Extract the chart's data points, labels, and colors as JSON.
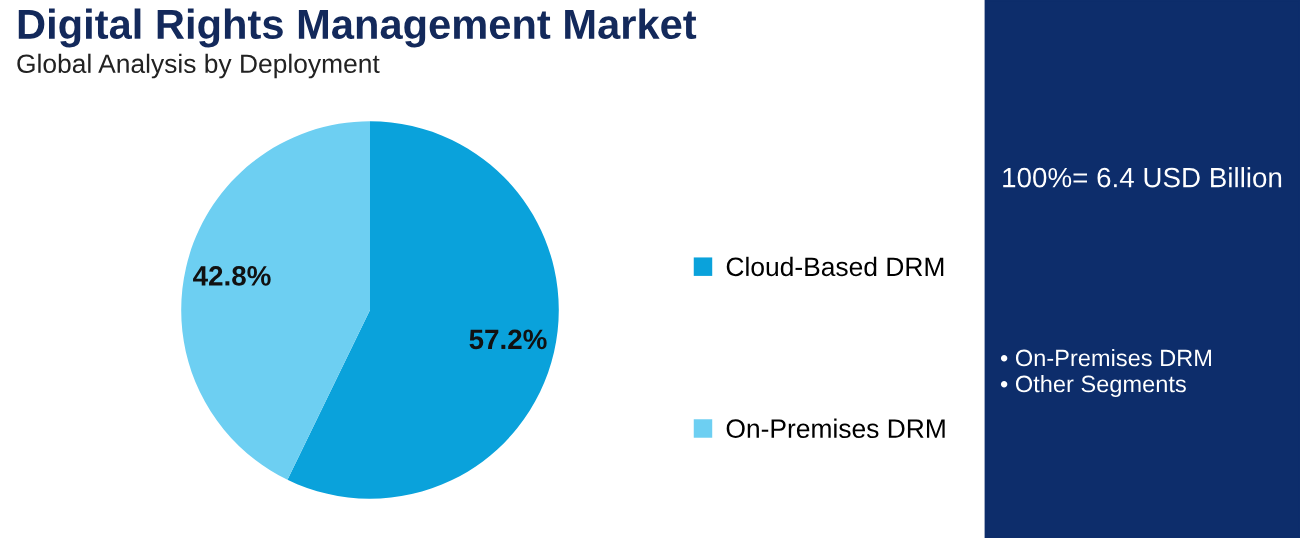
{
  "chart_data": {
    "type": "pie",
    "title": "Digital Rights Management Market",
    "subtitle": "Global Analysis by Deployment",
    "categories": [
      "Cloud-Based DRM",
      "On-Premises DRM"
    ],
    "values": [
      57.2,
      42.8
    ],
    "colors": [
      "#0aa2db",
      "#6dcff2"
    ],
    "value_labels": [
      "57.2%",
      "42.8%"
    ],
    "legend": "right",
    "annotations": [
      "100%= 6.4 USD Billion",
      "• On-Premises DRM",
      "• Other Segments"
    ]
  }
}
